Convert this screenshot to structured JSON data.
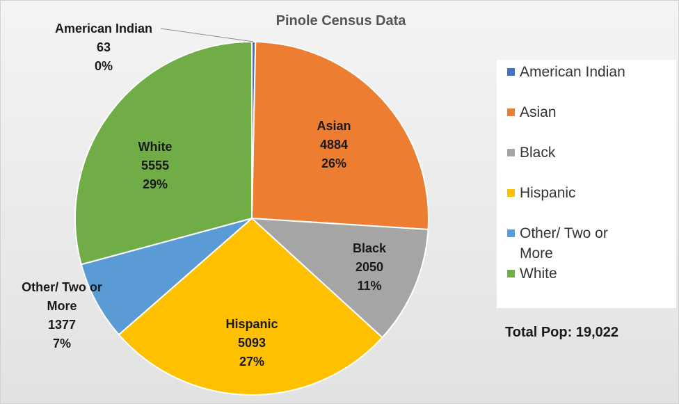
{
  "chart_data": {
    "type": "pie",
    "title": "Pinole Census Data",
    "slices": [
      {
        "label": "American Indian",
        "value": 63,
        "percent": "0%",
        "color": "#4472c4"
      },
      {
        "label": "Asian",
        "value": 4884,
        "percent": "26%",
        "color": "#ed7d31"
      },
      {
        "label": "Black",
        "value": 2050,
        "percent": "11%",
        "color": "#a5a5a5"
      },
      {
        "label": "Hispanic",
        "value": 5093,
        "percent": "27%",
        "color": "#ffc000"
      },
      {
        "label": "Other/ Two or More",
        "value": 1377,
        "percent": "7%",
        "color": "#5b9bd5"
      },
      {
        "label": "White",
        "value": 5555,
        "percent": "29%",
        "color": "#70ad47"
      }
    ],
    "legend_position": "right",
    "annotation": "Total Pop: 19,022"
  }
}
